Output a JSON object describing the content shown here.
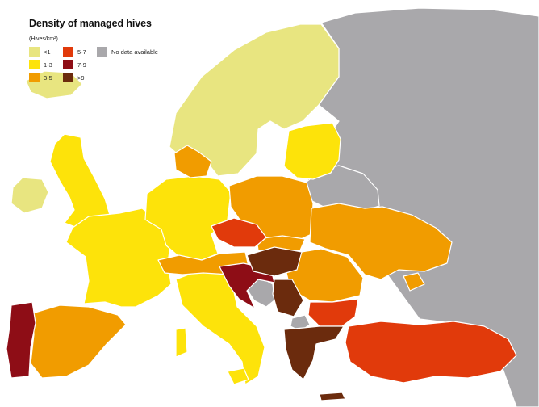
{
  "map": {
    "title": "Density of managed hives",
    "unit": "(Hives/km²)",
    "legend": [
      {
        "key": "lt1",
        "label": "<1",
        "color": "#e8e580"
      },
      {
        "key": "1to3",
        "label": "1-3",
        "color": "#fde30a"
      },
      {
        "key": "3to5",
        "label": "3-5",
        "color": "#f19c00"
      },
      {
        "key": "5to7",
        "label": "5-7",
        "color": "#e13a0b"
      },
      {
        "key": "7to9",
        "label": "7-9",
        "color": "#8e0d16"
      },
      {
        "key": "gt9",
        "label": ">9",
        "color": "#6b2b0d"
      },
      {
        "key": "na",
        "label": "No data available",
        "color": "#a9a8ab"
      }
    ],
    "regions": {
      "lt1": [
        "Ireland",
        "Iceland",
        "Norway",
        "Sweden",
        "Finland"
      ],
      "1to3": [
        "United Kingdom",
        "France",
        "Germany",
        "Netherlands",
        "Belgium",
        "Estonia",
        "Latvia",
        "Lithuania",
        "Italy"
      ],
      "3to5": [
        "Spain",
        "Denmark",
        "Poland",
        "Ukraine",
        "Romania",
        "Switzerland",
        "Slovakia",
        "Moldova",
        "Austria"
      ],
      "5to7": [
        "Czech Republic",
        "Bulgaria",
        "Turkey"
      ],
      "7to9": [
        "Portugal",
        "Croatia",
        "Slovenia"
      ],
      "gt9": [
        "Hungary",
        "Greece",
        "Serbia"
      ],
      "na": [
        "Russia",
        "Belarus",
        "Bosnia and Herzegovina",
        "North Macedonia"
      ]
    }
  }
}
